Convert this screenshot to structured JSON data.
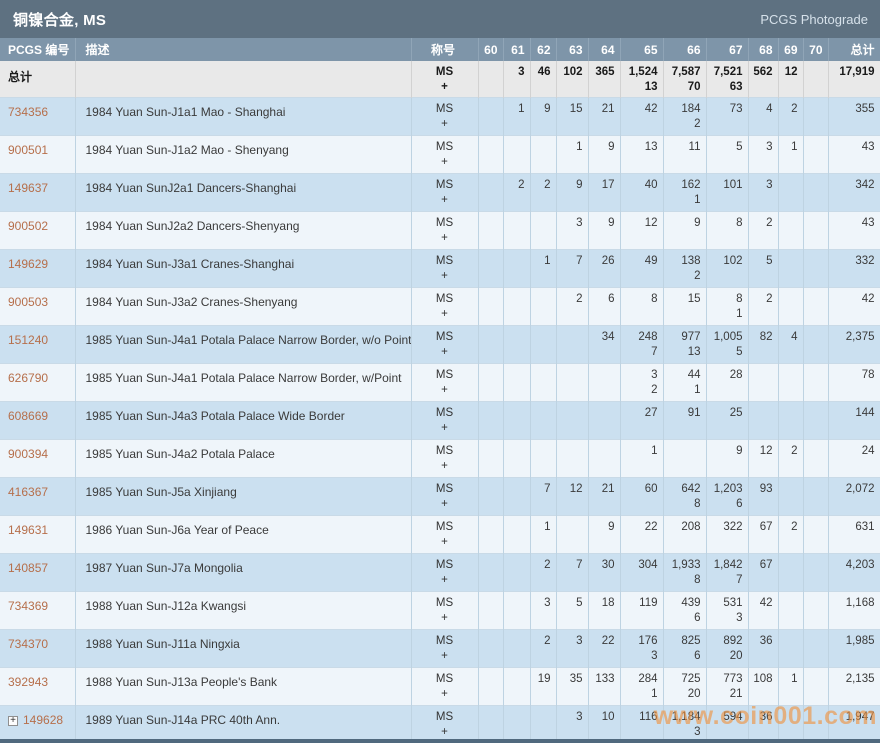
{
  "title_bar": {
    "title": "铜镍合金, MS",
    "photograde_label": "PCGS Photograde"
  },
  "columns": {
    "pcgs": "PCGS 编号",
    "desc": "描述",
    "designation": "称号",
    "grades": [
      "60",
      "61",
      "62",
      "63",
      "64",
      "65",
      "66",
      "67",
      "68",
      "69",
      "70"
    ],
    "total": "总计"
  },
  "designation": {
    "primary": "MS",
    "secondary": "+"
  },
  "total_row": {
    "label": "总计",
    "ms": [
      "",
      "3",
      "46",
      "102",
      "365",
      "1,524",
      "7,587",
      "7,521",
      "562",
      "12",
      ""
    ],
    "plus": [
      "",
      "",
      "",
      "",
      "",
      "13",
      "70",
      "63",
      "",
      "",
      ""
    ],
    "total": "17,919"
  },
  "rows": [
    {
      "pcgs": "734356",
      "desc": "1984 Yuan Sun-J1a1 Mao - Shanghai",
      "ms": [
        "",
        "1",
        "9",
        "15",
        "21",
        "42",
        "184",
        "73",
        "4",
        "2",
        ""
      ],
      "plus": [
        "",
        "",
        "",
        "",
        "",
        "",
        "2",
        "",
        "",
        "",
        ""
      ],
      "total": "355"
    },
    {
      "pcgs": "900501",
      "desc": "1984 Yuan Sun-J1a2 Mao - Shenyang",
      "ms": [
        "",
        "",
        "",
        "1",
        "9",
        "13",
        "11",
        "5",
        "3",
        "1",
        ""
      ],
      "plus": [
        "",
        "",
        "",
        "",
        "",
        "",
        "",
        "",
        "",
        "",
        ""
      ],
      "total": "43"
    },
    {
      "pcgs": "149637",
      "desc": "1984 Yuan SunJ2a1 Dancers-Shanghai",
      "ms": [
        "",
        "2",
        "2",
        "9",
        "17",
        "40",
        "162",
        "101",
        "3",
        "",
        ""
      ],
      "plus": [
        "",
        "",
        "",
        "",
        "",
        "",
        "1",
        "",
        "",
        "",
        ""
      ],
      "total": "342"
    },
    {
      "pcgs": "900502",
      "desc": "1984 Yuan SunJ2a2 Dancers-Shenyang",
      "ms": [
        "",
        "",
        "",
        "3",
        "9",
        "12",
        "9",
        "8",
        "2",
        "",
        ""
      ],
      "plus": [
        "",
        "",
        "",
        "",
        "",
        "",
        "",
        "",
        "",
        "",
        ""
      ],
      "total": "43"
    },
    {
      "pcgs": "149629",
      "desc": "1984 Yuan Sun-J3a1 Cranes-Shanghai",
      "ms": [
        "",
        "",
        "1",
        "7",
        "26",
        "49",
        "138",
        "102",
        "5",
        "",
        ""
      ],
      "plus": [
        "",
        "",
        "",
        "",
        "",
        "",
        "2",
        "",
        "",
        "",
        ""
      ],
      "total": "332"
    },
    {
      "pcgs": "900503",
      "desc": "1984 Yuan Sun-J3a2 Cranes-Shenyang",
      "ms": [
        "",
        "",
        "",
        "2",
        "6",
        "8",
        "15",
        "8",
        "2",
        "",
        ""
      ],
      "plus": [
        "",
        "",
        "",
        "",
        "",
        "",
        "",
        "1",
        "",
        "",
        ""
      ],
      "total": "42"
    },
    {
      "pcgs": "151240",
      "desc": "1985 Yuan Sun-J4a1 Potala Palace Narrow Border, w/o Point",
      "ms": [
        "",
        "",
        "",
        "",
        "34",
        "248",
        "977",
        "1,005",
        "82",
        "4",
        ""
      ],
      "plus": [
        "",
        "",
        "",
        "",
        "",
        "7",
        "13",
        "5",
        "",
        "",
        ""
      ],
      "total": "2,375"
    },
    {
      "pcgs": "626790",
      "desc": "1985 Yuan Sun-J4a1 Potala Palace Narrow Border, w/Point",
      "ms": [
        "",
        "",
        "",
        "",
        "",
        "3",
        "44",
        "28",
        "",
        "",
        ""
      ],
      "plus": [
        "",
        "",
        "",
        "",
        "",
        "2",
        "1",
        "",
        "",
        "",
        ""
      ],
      "total": "78"
    },
    {
      "pcgs": "608669",
      "desc": "1985 Yuan Sun-J4a3 Potala Palace Wide Border",
      "ms": [
        "",
        "",
        "",
        "",
        "",
        "27",
        "91",
        "25",
        "",
        "",
        ""
      ],
      "plus": [
        "",
        "",
        "",
        "",
        "",
        "",
        "",
        "",
        "",
        "",
        ""
      ],
      "total": "144"
    },
    {
      "pcgs": "900394",
      "desc": "1985 Yuan Sun-J4a2 Potala Palace",
      "ms": [
        "",
        "",
        "",
        "",
        "",
        "1",
        "",
        "9",
        "12",
        "2",
        ""
      ],
      "plus": [
        "",
        "",
        "",
        "",
        "",
        "",
        "",
        "",
        "",
        "",
        ""
      ],
      "total": "24"
    },
    {
      "pcgs": "416367",
      "desc": "1985 Yuan Sun-J5a Xinjiang",
      "ms": [
        "",
        "",
        "7",
        "12",
        "21",
        "60",
        "642",
        "1,203",
        "93",
        "",
        ""
      ],
      "plus": [
        "",
        "",
        "",
        "",
        "",
        "",
        "8",
        "6",
        "",
        "",
        ""
      ],
      "total": "2,072"
    },
    {
      "pcgs": "149631",
      "desc": "1986 Yuan Sun-J6a Year of Peace",
      "ms": [
        "",
        "",
        "1",
        "",
        "9",
        "22",
        "208",
        "322",
        "67",
        "2",
        ""
      ],
      "plus": [
        "",
        "",
        "",
        "",
        "",
        "",
        "",
        "",
        "",
        "",
        ""
      ],
      "total": "631"
    },
    {
      "pcgs": "140857",
      "desc": "1987 Yuan Sun-J7a Mongolia",
      "ms": [
        "",
        "",
        "2",
        "7",
        "30",
        "304",
        "1,933",
        "1,842",
        "67",
        "",
        ""
      ],
      "plus": [
        "",
        "",
        "",
        "",
        "",
        "",
        "8",
        "7",
        "",
        "",
        ""
      ],
      "total": "4,203"
    },
    {
      "pcgs": "734369",
      "desc": "1988 Yuan Sun-J12a Kwangsi",
      "ms": [
        "",
        "",
        "3",
        "5",
        "18",
        "119",
        "439",
        "531",
        "42",
        "",
        ""
      ],
      "plus": [
        "",
        "",
        "",
        "",
        "",
        "",
        "6",
        "3",
        "",
        "",
        ""
      ],
      "total": "1,168"
    },
    {
      "pcgs": "734370",
      "desc": "1988 Yuan Sun-J11a Ningxia",
      "ms": [
        "",
        "",
        "2",
        "3",
        "22",
        "176",
        "825",
        "892",
        "36",
        "",
        ""
      ],
      "plus": [
        "",
        "",
        "",
        "",
        "",
        "3",
        "6",
        "20",
        "",
        "",
        ""
      ],
      "total": "1,985"
    },
    {
      "pcgs": "392943",
      "desc": "1988 Yuan Sun-J13a People's Bank",
      "ms": [
        "",
        "",
        "19",
        "35",
        "133",
        "284",
        "725",
        "773",
        "108",
        "1",
        ""
      ],
      "plus": [
        "",
        "",
        "",
        "",
        "",
        "1",
        "20",
        "21",
        "",
        "",
        ""
      ],
      "total": "2,135"
    },
    {
      "pcgs": "149628",
      "desc": "1989 Yuan Sun-J14a PRC 40th Ann.",
      "expandable": true,
      "ms": [
        "",
        "",
        "",
        "3",
        "10",
        "116",
        "1,184",
        "594",
        "36",
        "",
        ""
      ],
      "plus": [
        "",
        "",
        "",
        "",
        "",
        "",
        "3",
        "",
        "",
        "",
        ""
      ],
      "total": "1,947"
    }
  ],
  "watermark": "www.coin001.com",
  "colors": {
    "title_bar_bg": "#5e7181",
    "header_bg": "#7e95a9",
    "total_row_bg": "#e9e9e9",
    "row_blue": "#cbe0f0",
    "row_pale": "#eff5fa",
    "link": "#b66f4b",
    "watermark": "#f0923c"
  }
}
